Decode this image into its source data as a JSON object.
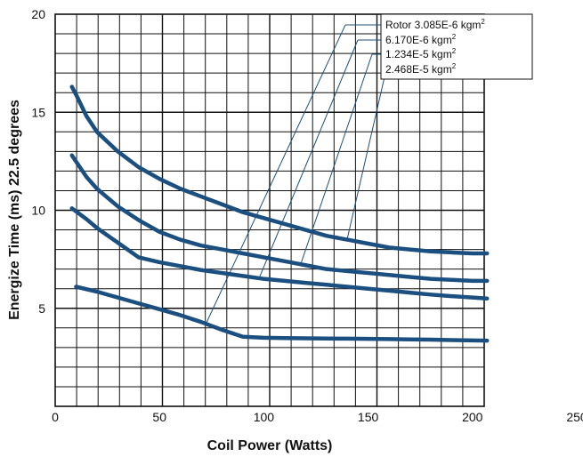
{
  "chart_data": {
    "type": "line",
    "xlabel": "Coil Power (Watts)",
    "ylabel": "Energize Time (ms) 22.5 degrees",
    "xlim": [
      0,
      250
    ],
    "ylim": [
      0,
      20
    ],
    "x_ticks": [
      "0",
      "50",
      "100",
      "150",
      "200",
      "250"
    ],
    "y_ticks": [
      "5",
      "10",
      "15",
      "20"
    ],
    "grid": true,
    "legend_position": "top-right",
    "series": [
      {
        "name": "Rotor 3.085E-6 kgm2",
        "legend_main": "Rotor 3.085E-6 kgm",
        "legend_sup": "2",
        "x": [
          10,
          20,
          30,
          40,
          50,
          60,
          70,
          80,
          90,
          100,
          110,
          120,
          130,
          140,
          150,
          160,
          170,
          180,
          190,
          200,
          207
        ],
        "y": [
          6.1,
          5.85,
          5.55,
          5.25,
          4.95,
          4.65,
          4.3,
          3.9,
          3.55,
          3.5,
          3.48,
          3.47,
          3.46,
          3.45,
          3.44,
          3.43,
          3.41,
          3.4,
          3.38,
          3.36,
          3.35
        ]
      },
      {
        "name": "6.170E-6 kgm2",
        "legend_main": "6.170E-6 kgm",
        "legend_sup": "2",
        "x": [
          8,
          15,
          20,
          30,
          40,
          50,
          60,
          70,
          80,
          90,
          100,
          110,
          120,
          130,
          140,
          150,
          160,
          170,
          180,
          190,
          200,
          207
        ],
        "y": [
          10.1,
          9.55,
          9.1,
          8.35,
          7.6,
          7.35,
          7.15,
          6.95,
          6.8,
          6.65,
          6.5,
          6.4,
          6.3,
          6.2,
          6.1,
          6.0,
          5.9,
          5.8,
          5.7,
          5.62,
          5.55,
          5.5
        ]
      },
      {
        "name": "1.234E-5 kgm2",
        "legend_main": "1.234E-5 kgm",
        "legend_sup": "2",
        "x": [
          8,
          15,
          20,
          30,
          40,
          50,
          60,
          70,
          80,
          90,
          100,
          110,
          120,
          130,
          140,
          150,
          160,
          170,
          180,
          190,
          200,
          207
        ],
        "y": [
          12.8,
          11.7,
          11.1,
          10.2,
          9.5,
          8.9,
          8.5,
          8.2,
          8.0,
          7.8,
          7.6,
          7.4,
          7.2,
          7.0,
          6.9,
          6.8,
          6.7,
          6.6,
          6.5,
          6.45,
          6.4,
          6.4
        ]
      },
      {
        "name": "2.468E-5 kgm2",
        "legend_main": "2.468E-5 kgm",
        "legend_sup": "2",
        "x": [
          8,
          10,
          15,
          20,
          30,
          40,
          50,
          60,
          70,
          80,
          90,
          100,
          110,
          120,
          130,
          140,
          150,
          160,
          170,
          180,
          190,
          200,
          207
        ],
        "y": [
          16.3,
          15.9,
          14.8,
          14.0,
          13.0,
          12.2,
          11.6,
          11.1,
          10.7,
          10.3,
          9.9,
          9.6,
          9.3,
          9.0,
          8.7,
          8.5,
          8.3,
          8.1,
          8.0,
          7.9,
          7.85,
          7.8,
          7.8
        ]
      }
    ],
    "leader_targets": [
      {
        "x": 72,
        "y": 4.15
      },
      {
        "x": 98,
        "y": 6.6
      },
      {
        "x": 118,
        "y": 7.35
      },
      {
        "x": 140,
        "y": 8.55
      }
    ]
  }
}
